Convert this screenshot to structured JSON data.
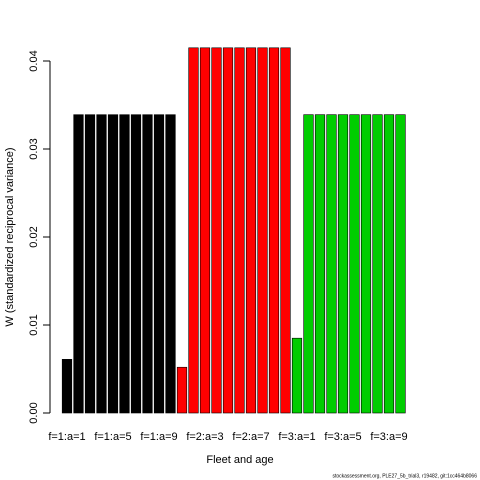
{
  "chart_data": {
    "type": "bar",
    "x_label": "Fleet and age",
    "y_label": "W (standardized reciprocal variance)",
    "caption": "stockassessment.org, PLE27_5b_trial3, r19482, git:1cc464b8066",
    "categories": [
      "f=1:a=1",
      null,
      null,
      null,
      "f=1:a=5",
      null,
      null,
      null,
      "f=1:a=9",
      null,
      null,
      null,
      "f=2:a=3",
      null,
      null,
      null,
      "f=2:a=7",
      null,
      null,
      null,
      "f=3:a=1",
      null,
      null,
      null,
      "f=3:a=5",
      null,
      null,
      null,
      "f=3:a=9",
      null
    ],
    "values": [
      0.0061,
      0.0339,
      0.0339,
      0.0339,
      0.0339,
      0.0339,
      0.0339,
      0.0339,
      0.0339,
      0.0339,
      0.0052,
      0.0415,
      0.0415,
      0.0415,
      0.0415,
      0.0415,
      0.0415,
      0.0415,
      0.0415,
      0.0415,
      0.0085,
      0.0339,
      0.0339,
      0.0339,
      0.0339,
      0.0339,
      0.0339,
      0.0339,
      0.0339,
      0.0339
    ],
    "colors": [
      "#000000",
      "#000000",
      "#000000",
      "#000000",
      "#000000",
      "#000000",
      "#000000",
      "#000000",
      "#000000",
      "#000000",
      "#ff0000",
      "#ff0000",
      "#ff0000",
      "#ff0000",
      "#ff0000",
      "#ff0000",
      "#ff0000",
      "#ff0000",
      "#ff0000",
      "#ff0000",
      "#00cd00",
      "#00cd00",
      "#00cd00",
      "#00cd00",
      "#00cd00",
      "#00cd00",
      "#00cd00",
      "#00cd00",
      "#00cd00",
      "#00cd00"
    ],
    "ylim": [
      0,
      0.04
    ],
    "yticks": [
      {
        "value": 0,
        "label": "0.00"
      },
      0.01,
      0.02,
      0.03,
      0.04
    ]
  }
}
